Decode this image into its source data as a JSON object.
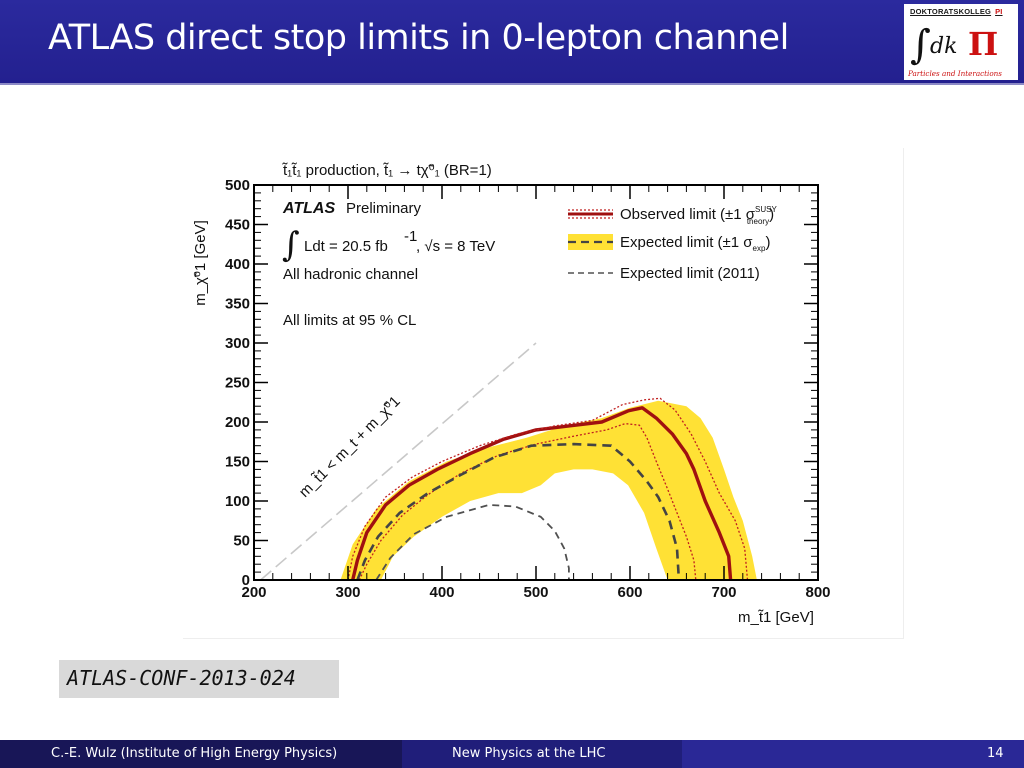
{
  "slide": {
    "title": "ATLAS direct stop limits in 0-lepton channel",
    "logo": {
      "top_text": "DOKTORATSKOLLEG",
      "top_pi": "PI",
      "subtitle": "Particles and Interactions"
    },
    "reference": "ATLAS-CONF-2013-024",
    "footer": {
      "author": "C.-E. Wulz (Institute of High Energy Physics)",
      "talk": "New Physics at the LHC",
      "page": "14"
    }
  },
  "colors": {
    "header_bg": "#2b2a9e",
    "observed": "#a01010",
    "expected_band": "#ffe135",
    "expected_2011": "#505050",
    "kinematic_line": "#c8c8c8"
  },
  "chart_data": {
    "type": "line",
    "header": "t̃₁t̃₁ production, t̃₁ → tχ̃⁰₁ (BR=1)",
    "xlabel": "m_t̃1 [GeV]",
    "ylabel": "m_χ̃⁰1 [GeV]",
    "xlim": [
      200,
      800
    ],
    "ylim": [
      0,
      500
    ],
    "x_ticks": [
      "200",
      "300",
      "400",
      "500",
      "600",
      "700",
      "800"
    ],
    "y_ticks": [
      "0",
      "50",
      "100",
      "150",
      "200",
      "250",
      "300",
      "350",
      "400",
      "450",
      "500"
    ],
    "annotations": {
      "experiment": "ATLAS",
      "status": "Preliminary",
      "lumi": "Ldt = 20.5 fb",
      "lumi_exp": "-1",
      "energy": ", √s = 8 TeV",
      "channel": "All hadronic channel",
      "cl": "All limits at 95 % CL",
      "kinematic": "m_t̃1 < m_t + m_χ̃⁰1"
    },
    "legend": {
      "placement": "top-right",
      "observed": "Observed limit (±1 σ",
      "observed_sup": "SUSY",
      "observed_sub": "theory",
      "expected": "Expected limit (±1 σ",
      "expected_sub": "exp",
      "expected_2011": "Expected limit (2011)"
    },
    "series": [
      {
        "name": "Observed limit",
        "points": [
          [
            305,
            0
          ],
          [
            310,
            25
          ],
          [
            320,
            60
          ],
          [
            340,
            95
          ],
          [
            365,
            120
          ],
          [
            395,
            140
          ],
          [
            430,
            160
          ],
          [
            465,
            178
          ],
          [
            500,
            190
          ],
          [
            535,
            195
          ],
          [
            570,
            200
          ],
          [
            598,
            214
          ],
          [
            613,
            218
          ],
          [
            628,
            205
          ],
          [
            645,
            185
          ],
          [
            660,
            160
          ],
          [
            668,
            140
          ],
          [
            680,
            100
          ],
          [
            695,
            60
          ],
          [
            705,
            30
          ],
          [
            707,
            0
          ]
        ]
      },
      {
        "name": "Observed +1σ theory",
        "points": [
          [
            300,
            0
          ],
          [
            305,
            30
          ],
          [
            318,
            68
          ],
          [
            340,
            105
          ],
          [
            368,
            130
          ],
          [
            400,
            150
          ],
          [
            440,
            170
          ],
          [
            480,
            185
          ],
          [
            520,
            195
          ],
          [
            560,
            202
          ],
          [
            592,
            222
          ],
          [
            615,
            228
          ],
          [
            632,
            230
          ],
          [
            648,
            215
          ],
          [
            665,
            185
          ],
          [
            680,
            150
          ],
          [
            695,
            110
          ],
          [
            712,
            75
          ],
          [
            722,
            40
          ],
          [
            725,
            0
          ]
        ]
      },
      {
        "name": "Observed -1σ theory",
        "points": [
          [
            312,
            0
          ],
          [
            320,
            20
          ],
          [
            335,
            50
          ],
          [
            358,
            82
          ],
          [
            385,
            108
          ],
          [
            420,
            135
          ],
          [
            460,
            158
          ],
          [
            500,
            172
          ],
          [
            540,
            182
          ],
          [
            575,
            190
          ],
          [
            595,
            198
          ],
          [
            610,
            196
          ],
          [
            618,
            180
          ],
          [
            628,
            150
          ],
          [
            640,
            115
          ],
          [
            650,
            85
          ],
          [
            660,
            55
          ],
          [
            668,
            25
          ],
          [
            670,
            0
          ]
        ]
      },
      {
        "name": "Expected limit",
        "points": [
          [
            310,
            0
          ],
          [
            318,
            25
          ],
          [
            332,
            55
          ],
          [
            355,
            85
          ],
          [
            385,
            110
          ],
          [
            420,
            133
          ],
          [
            455,
            155
          ],
          [
            495,
            170
          ],
          [
            540,
            172
          ],
          [
            580,
            170
          ],
          [
            600,
            150
          ],
          [
            618,
            125
          ],
          [
            630,
            105
          ],
          [
            642,
            75
          ],
          [
            650,
            40
          ],
          [
            652,
            0
          ]
        ]
      },
      {
        "name": "Expected limit (2011)",
        "points": [
          [
            330,
            0
          ],
          [
            345,
            28
          ],
          [
            370,
            58
          ],
          [
            405,
            80
          ],
          [
            450,
            95
          ],
          [
            478,
            93
          ],
          [
            505,
            80
          ],
          [
            520,
            62
          ],
          [
            530,
            40
          ],
          [
            535,
            15
          ],
          [
            535,
            0
          ]
        ]
      },
      {
        "name": "Kinematic limit",
        "points": [
          [
            207,
            0
          ],
          [
            500,
            300
          ]
        ]
      }
    ],
    "expected_band": {
      "outer": [
        [
          292,
          0
        ],
        [
          305,
          45
        ],
        [
          330,
          90
        ],
        [
          365,
          125
        ],
        [
          405,
          150
        ],
        [
          450,
          168
        ],
        [
          490,
          180
        ],
        [
          530,
          195
        ],
        [
          570,
          205
        ],
        [
          600,
          218
        ],
        [
          630,
          227
        ],
        [
          660,
          220
        ],
        [
          675,
          205
        ],
        [
          688,
          180
        ],
        [
          700,
          140
        ],
        [
          710,
          105
        ],
        [
          720,
          75
        ],
        [
          730,
          30
        ],
        [
          735,
          0
        ]
      ],
      "inner": [
        [
          640,
          0
        ],
        [
          628,
          40
        ],
        [
          615,
          85
        ],
        [
          598,
          120
        ],
        [
          582,
          135
        ],
        [
          560,
          140
        ],
        [
          540,
          140
        ],
        [
          520,
          135
        ],
        [
          505,
          120
        ],
        [
          485,
          110
        ],
        [
          460,
          110
        ],
        [
          430,
          100
        ],
        [
          400,
          80
        ],
        [
          370,
          55
        ],
        [
          348,
          30
        ],
        [
          335,
          0
        ]
      ]
    }
  }
}
